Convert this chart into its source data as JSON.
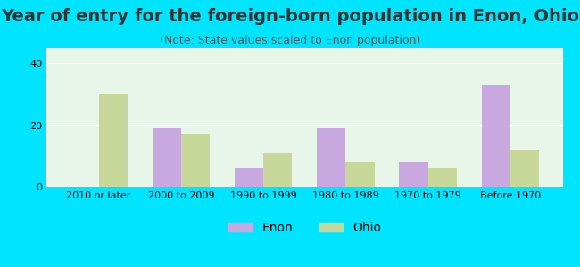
{
  "title": "Year of entry for the foreign-born population in Enon, Ohio",
  "subtitle": "(Note: State values scaled to Enon population)",
  "categories": [
    "2010 or later",
    "2000 to 2009",
    "1990 to 1999",
    "1980 to 1989",
    "1970 to 1979",
    "Before 1970"
  ],
  "enon_values": [
    0,
    19,
    6,
    19,
    8,
    33
  ],
  "ohio_values": [
    30,
    17,
    11,
    8,
    6,
    12
  ],
  "enon_color": "#c9a8e0",
  "ohio_color": "#c8d89a",
  "background_outer": "#00e5ff",
  "background_inner": "#e8f5e9",
  "ylim": [
    0,
    45
  ],
  "yticks": [
    0,
    20,
    40
  ],
  "bar_width": 0.35,
  "legend_labels": [
    "Enon",
    "Ohio"
  ],
  "title_fontsize": 14,
  "subtitle_fontsize": 9,
  "tick_fontsize": 8,
  "legend_fontsize": 10
}
